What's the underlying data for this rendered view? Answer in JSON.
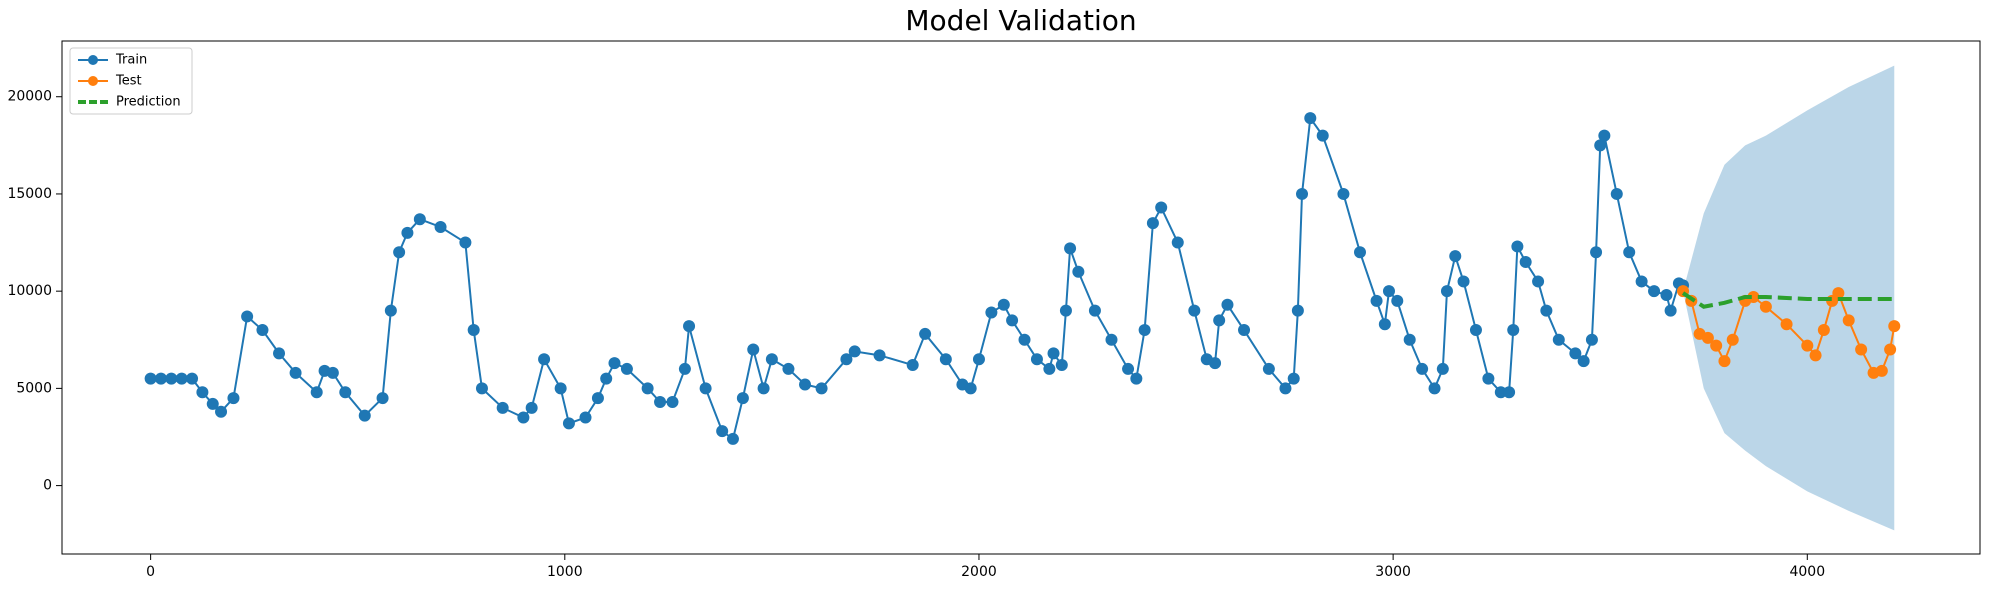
{
  "chart_data": {
    "type": "line",
    "title": "Model Validation",
    "xlim": [
      -214,
      4417
    ],
    "xticks": [
      0,
      1000,
      2000,
      3000,
      4000
    ],
    "ylim": [
      -3518,
      22866
    ],
    "yticks": [
      0,
      5000,
      10000,
      15000,
      20000
    ],
    "legend": "upper left",
    "series": [
      {
        "name": "Train",
        "color": "#1f77b4",
        "marker": "o",
        "style": "solid",
        "x": [
          0,
          25,
          50,
          75,
          100,
          125,
          150,
          170,
          200,
          233,
          270,
          310,
          350,
          401,
          420,
          440,
          470,
          517,
          560,
          580,
          600,
          620,
          650,
          700,
          760,
          780,
          800,
          850,
          900,
          920,
          950,
          990,
          1010,
          1050,
          1080,
          1100,
          1120,
          1150,
          1200,
          1230,
          1260,
          1290,
          1300,
          1340,
          1380,
          1406,
          1430,
          1455,
          1480,
          1500,
          1540,
          1580,
          1620,
          1680,
          1700,
          1760,
          1840,
          1870,
          1920,
          1960,
          1980,
          2000,
          2030,
          2060,
          2080,
          2110,
          2140,
          2170,
          2180,
          2200,
          2210,
          2220,
          2240,
          2280,
          2320,
          2360,
          2380,
          2400,
          2420,
          2440,
          2480,
          2520,
          2550,
          2570,
          2580,
          2600,
          2640,
          2700,
          2740,
          2760,
          2770,
          2780,
          2800,
          2830,
          2880,
          2920,
          2960,
          2980,
          2990,
          3010,
          3040,
          3070,
          3100,
          3120,
          3130,
          3150,
          3170,
          3200,
          3230,
          3260,
          3280,
          3290,
          3300,
          3320,
          3350,
          3370,
          3400,
          3440,
          3460,
          3480,
          3490,
          3500,
          3510,
          3540,
          3570,
          3600,
          3630,
          3660,
          3670,
          3690,
          3700
        ],
        "values": [
          5500,
          5500,
          5500,
          5500,
          5500,
          4800,
          4200,
          3800,
          4500,
          8700,
          8000,
          6800,
          5800,
          4800,
          5900,
          5800,
          4800,
          3600,
          4500,
          9000,
          12000,
          13000,
          13700,
          13300,
          12500,
          8000,
          5000,
          4000,
          3500,
          4000,
          6500,
          5000,
          3200,
          3500,
          4500,
          5500,
          6300,
          6000,
          5000,
          4300,
          4300,
          6000,
          8200,
          5000,
          2800,
          2400,
          4500,
          7000,
          5000,
          6500,
          6000,
          5200,
          5000,
          6500,
          6900,
          6700,
          6200,
          7800,
          6500,
          5200,
          5000,
          6500,
          8900,
          9300,
          8500,
          7500,
          6500,
          6000,
          6800,
          6200,
          9000,
          12200,
          11000,
          9000,
          7500,
          6000,
          5500,
          8000,
          13500,
          14300,
          12500,
          9000,
          6500,
          6300,
          8500,
          9300,
          8000,
          6000,
          5000,
          5500,
          9000,
          15000,
          18900,
          18000,
          15000,
          12000,
          9500,
          8300,
          10000,
          9500,
          7500,
          6000,
          5000,
          6000,
          10000,
          11800,
          10500,
          8000,
          5500,
          4800,
          4800,
          8000,
          12300,
          11500,
          10500,
          9000,
          7500,
          6800,
          6400,
          7500,
          12000,
          17500,
          18000,
          15000,
          12000,
          10500,
          10000,
          9800,
          9000,
          10400,
          10300
        ]
      },
      {
        "name": "Test",
        "color": "#ff7f0e",
        "marker": "o",
        "style": "solid",
        "x": [
          3700,
          3720,
          3740,
          3760,
          3780,
          3800,
          3820,
          3850,
          3870,
          3900,
          3950,
          4000,
          4020,
          4040,
          4060,
          4075,
          4100,
          4130,
          4160,
          4180,
          4200,
          4210
        ],
        "values": [
          10000,
          9500,
          7800,
          7600,
          7200,
          6400,
          7500,
          9500,
          9700,
          9200,
          8300,
          7200,
          6700,
          8000,
          9500,
          9900,
          8500,
          7000,
          5800,
          5900,
          7000,
          8200
        ]
      },
      {
        "name": "Prediction",
        "color": "#2ca02c",
        "marker": "none",
        "style": "dashed",
        "x": [
          3700,
          3750,
          3800,
          3850,
          3900,
          3950,
          4000,
          4100,
          4210
        ],
        "values": [
          9900,
          9200,
          9400,
          9700,
          9700,
          9650,
          9600,
          9600,
          9600
        ]
      }
    ],
    "band": {
      "color": "#1f77b4",
      "opacity": 0.3,
      "x": [
        3700,
        3750,
        3800,
        3850,
        3900,
        4000,
        4100,
        4210
      ],
      "upper": [
        10000,
        14000,
        16500,
        17500,
        18000,
        19300,
        20500,
        21600
      ],
      "lower": [
        10000,
        5000,
        2700,
        1800,
        1000,
        -300,
        -1300,
        -2300
      ]
    }
  }
}
